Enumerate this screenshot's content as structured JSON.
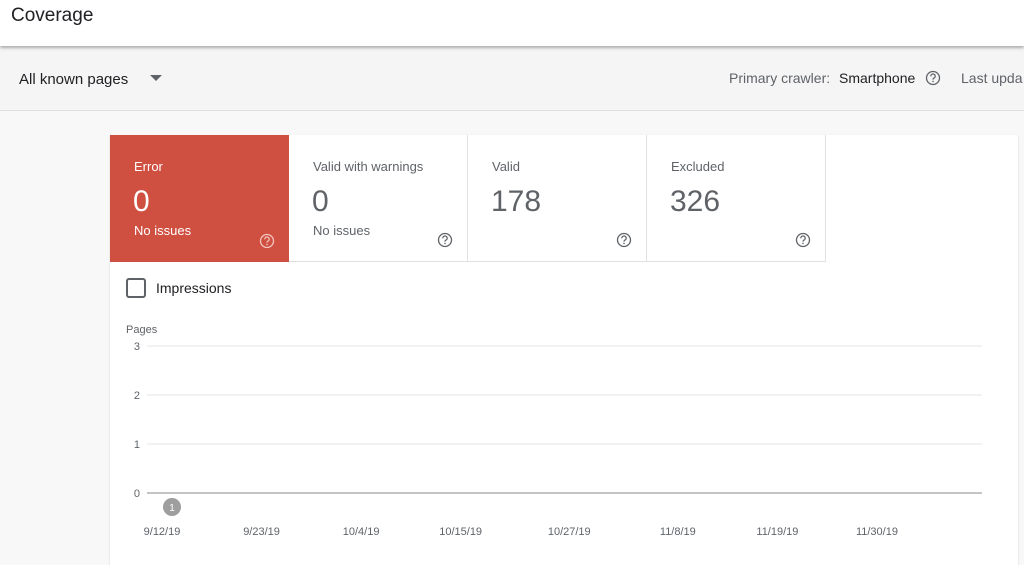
{
  "header": {
    "title": "Coverage"
  },
  "toolbar": {
    "filter": "All known pages",
    "crawler_label": "Primary crawler:",
    "crawler_value": "Smartphone",
    "last_updated": "Last upda"
  },
  "cards": [
    {
      "label": "Error",
      "value": "0",
      "sub": "No issues"
    },
    {
      "label": "Valid with warnings",
      "value": "0",
      "sub": "No issues"
    },
    {
      "label": "Valid",
      "value": "178"
    },
    {
      "label": "Excluded",
      "value": "326"
    }
  ],
  "checkbox": {
    "label": "Impressions"
  },
  "chart_data": {
    "type": "line",
    "y_label": "Pages",
    "categories": [
      "9/12/19",
      "9/23/19",
      "10/4/19",
      "10/15/19",
      "10/27/19",
      "11/8/19",
      "11/19/19",
      "11/30/19"
    ],
    "ylim": [
      0,
      3
    ],
    "yticks": [
      0,
      1,
      2,
      3
    ],
    "grid": true,
    "annotations": [
      {
        "category": "9/12/19",
        "label": "1"
      }
    ]
  }
}
